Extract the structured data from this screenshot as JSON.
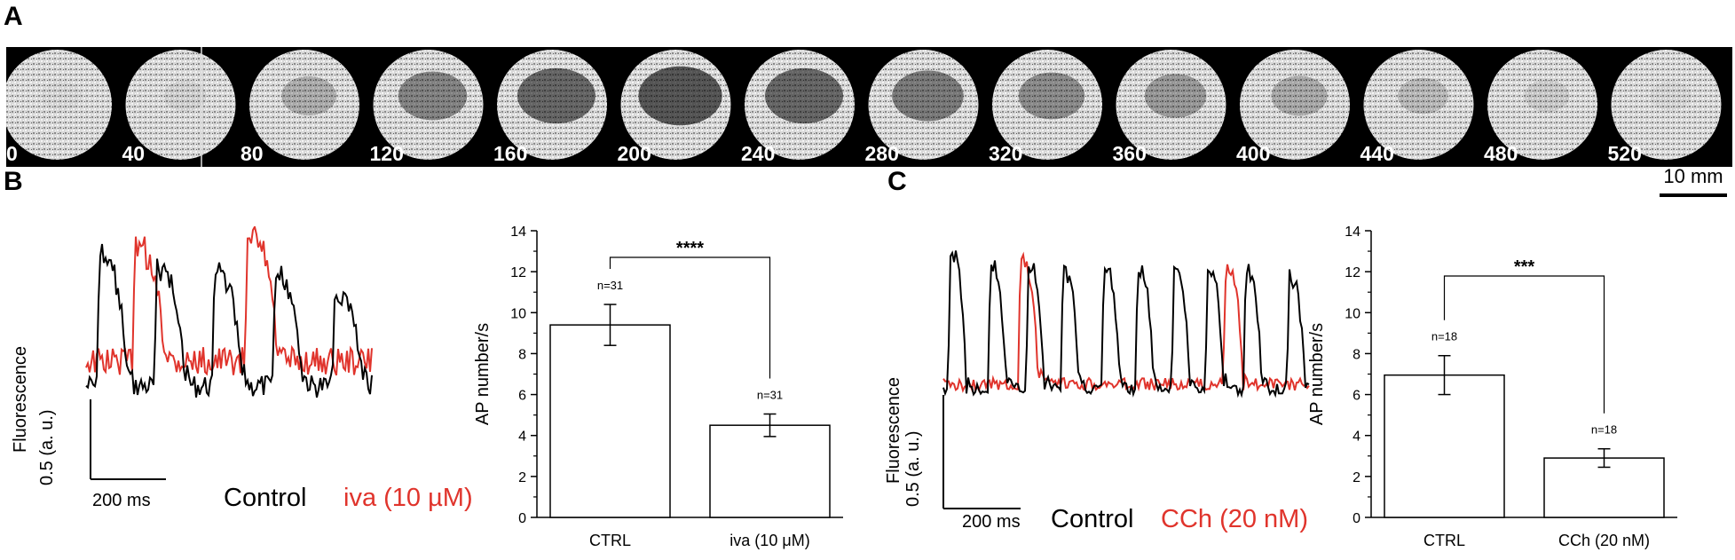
{
  "panels": {
    "a": {
      "letter": "A"
    },
    "b": {
      "letter": "B"
    },
    "c": {
      "letter": "C"
    }
  },
  "imaging_strip": {
    "time_labels": [
      "0",
      "40",
      "80",
      "120",
      "160",
      "200",
      "240",
      "280",
      "320",
      "360",
      "400",
      "440",
      "480",
      "520"
    ],
    "darkness": [
      0.04,
      0.08,
      0.3,
      0.55,
      0.72,
      0.82,
      0.72,
      0.6,
      0.5,
      0.42,
      0.32,
      0.22,
      0.12,
      0.05
    ],
    "scale_bar_label": "10 mm"
  },
  "trace_b": {
    "y_scale_label": "0.5 (a. u.)",
    "y_axis_title": "Fluorescence",
    "x_scale_label": "200 ms",
    "legend": [
      {
        "label": "Control",
        "color": "#000000"
      },
      {
        "label": "iva (10 µM)",
        "color": "#e0342c"
      }
    ]
  },
  "trace_c": {
    "y_scale_label": "0.5 (a. u.)",
    "y_axis_title": "Fluorescence",
    "x_scale_label": "200 ms",
    "legend": [
      {
        "label": "Control",
        "color": "#000000"
      },
      {
        "label": "CCh (20 nM)",
        "color": "#e0342c"
      }
    ]
  },
  "chart_data": [
    {
      "type": "bar",
      "panel": "B",
      "categories": [
        "CTRL",
        "iva (10 μM)"
      ],
      "values": [
        9.4,
        4.5
      ],
      "errors": [
        1.0,
        0.55
      ],
      "n_labels": [
        "n=31",
        "n=31"
      ],
      "significance": "****",
      "ylabel": "AP number/s",
      "ylim": [
        0,
        14
      ],
      "yticks": [
        "0",
        "2",
        "4",
        "6",
        "8",
        "10",
        "12",
        "14"
      ]
    },
    {
      "type": "bar",
      "panel": "C",
      "categories": [
        "CTRL",
        "CCh (20 nM)"
      ],
      "values": [
        6.95,
        2.9
      ],
      "errors": [
        0.95,
        0.45
      ],
      "n_labels": [
        "n=18",
        "n=18"
      ],
      "significance": "***",
      "ylabel": "AP number/s",
      "ylim": [
        0,
        14
      ],
      "yticks": [
        "0",
        "2",
        "4",
        "6",
        "8",
        "10",
        "12",
        "14"
      ]
    }
  ]
}
